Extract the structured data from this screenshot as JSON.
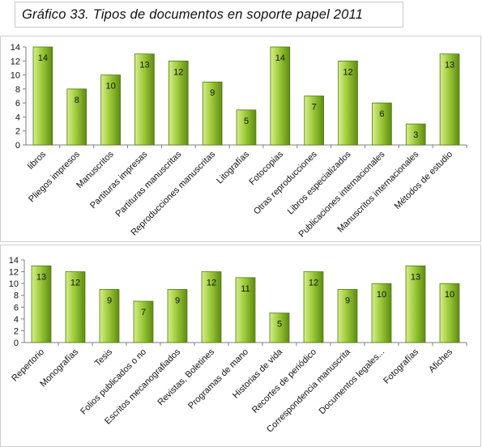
{
  "title": "Gráfico 33. Tipos de documentos en soporte papel 2011",
  "colors": {
    "bar_light": "#d6ee8a",
    "bar_mid": "#9dcb3a",
    "bar_dark": "#5e8a12",
    "bar_stroke": "#4f7a10",
    "axis": "#7f7f7f",
    "text": "#111111"
  },
  "chart_data": [
    {
      "type": "bar",
      "title": "",
      "xlabel": "",
      "ylabel": "",
      "ylim": [
        0,
        14
      ],
      "yticks": [
        0,
        2,
        4,
        6,
        8,
        10,
        12,
        14
      ],
      "grid": false,
      "legend": "none",
      "categories": [
        "libros",
        "Pliegos impresos",
        "Manuscritos",
        "Partituras impresas",
        "Partituras manuscritas",
        "Reproducciones manuscritas",
        "Litografías",
        "Fotocopias",
        "Otras reproducciones",
        "Libros especializados",
        "Publicaciones internacionales",
        "Manuscritos internacionales",
        "Métodos de estudio"
      ],
      "values": [
        14,
        8,
        10,
        13,
        12,
        9,
        5,
        14,
        7,
        12,
        6,
        3,
        13
      ]
    },
    {
      "type": "bar",
      "title": "",
      "xlabel": "",
      "ylabel": "",
      "ylim": [
        0,
        14
      ],
      "yticks": [
        0,
        2,
        4,
        6,
        8,
        10,
        12,
        14
      ],
      "grid": false,
      "legend": "none",
      "categories": [
        "Repertorio",
        "Monografías",
        "Tesis",
        "Folios publicados o no",
        "Escritos mecanografiados",
        "Revistas, Boletines",
        "Programas de mano",
        "Historias de vida",
        "Recortes de periódico",
        "Correspondencia manuscrita",
        "Documentos legales...",
        "Fotografías",
        "Afiches"
      ],
      "values": [
        13,
        12,
        9,
        7,
        9,
        12,
        11,
        5,
        12,
        9,
        10,
        13,
        10
      ]
    }
  ]
}
